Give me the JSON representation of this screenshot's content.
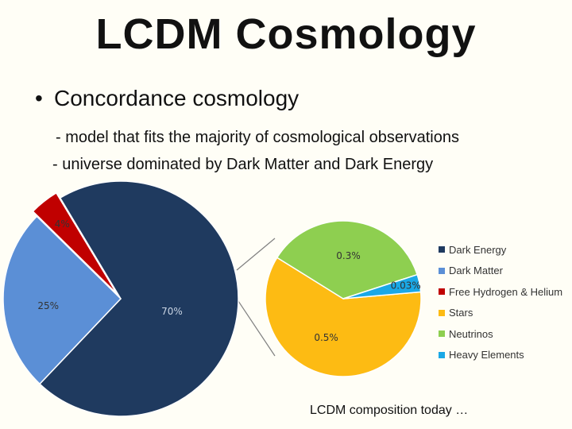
{
  "slide": {
    "title": "LCDM  Cosmology",
    "bullet": "Concordance cosmology",
    "sub_points": [
      "- model that fits the majority of cosmological observations",
      "-  universe dominated by Dark Matter and Dark Energy"
    ],
    "caption": "LCDM composition today …"
  },
  "chart_data": [
    {
      "type": "pie",
      "title": "",
      "categories": [
        "Dark Energy",
        "Dark Matter",
        "Free Hydrogen & Helium"
      ],
      "values": [
        70,
        25,
        4
      ],
      "labels": [
        "70%",
        "25%",
        "4%"
      ],
      "colors": [
        "#1f3a5f",
        "#5b8fd6",
        "#c00000"
      ],
      "exploded_slice": "Free Hydrogen & Helium"
    },
    {
      "type": "pie",
      "title": "",
      "categories": [
        "Stars",
        "Neutrinos",
        "Heavy Elements"
      ],
      "values": [
        0.5,
        0.3,
        0.03
      ],
      "labels": [
        "0.5%",
        "0.3%",
        "0.03%"
      ],
      "colors": [
        "#fdbb13",
        "#8ecf50",
        "#1aa8e6"
      ],
      "breakdown_of": "Free Hydrogen & Helium"
    }
  ],
  "legend": {
    "placement": "right",
    "items": [
      {
        "label": "Dark Energy",
        "color": "#1f3a5f"
      },
      {
        "label": "Dark Matter",
        "color": "#5b8fd6"
      },
      {
        "label": "Free Hydrogen & Helium",
        "color": "#c00000"
      },
      {
        "label": "Stars",
        "color": "#fdbb13"
      },
      {
        "label": "Neutrinos",
        "color": "#8ecf50"
      },
      {
        "label": "Heavy Elements",
        "color": "#1aa8e6"
      }
    ]
  }
}
